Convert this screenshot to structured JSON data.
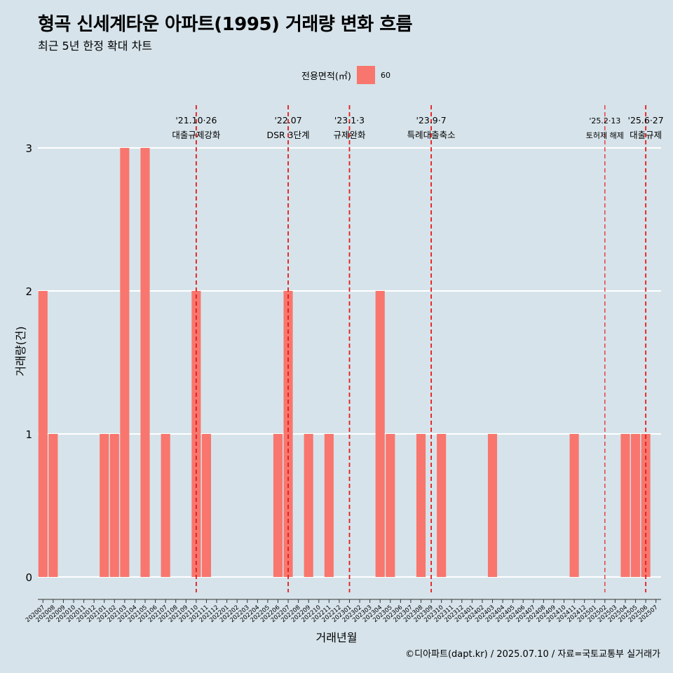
{
  "title": "형곡 신세계타운 아파트(1995) 거래량 변화 흐름",
  "subtitle": "최근 5년 한정 확대 차트",
  "caption": "©디아파트(dapt.kr) / 2025.07.10 / 자료=국토교통부 실거래가",
  "legend": {
    "title": "전용면적(㎡)",
    "label": "60",
    "color": "#f8766d"
  },
  "colors": {
    "background": "#d6e3ea",
    "bar": "#f8766d",
    "event_line": "#e8191a",
    "grid": "#ffffff"
  },
  "chart_data": {
    "type": "bar",
    "title": "형곡 신세계타운 아파트(1995) 거래량 변화 흐름",
    "subtitle": "최근 5년 한정 확대 차트",
    "xlabel": "거래년월",
    "ylabel": "거래량(건)",
    "ylim": [
      0,
      3
    ],
    "yticks": [
      0,
      1,
      2,
      3
    ],
    "grid": "horizontal",
    "legend_position": "top",
    "categories": [
      "202007",
      "202008",
      "202009",
      "202010",
      "202011",
      "202012",
      "202101",
      "202102",
      "202103",
      "202104",
      "202105",
      "202106",
      "202107",
      "202108",
      "202109",
      "202110",
      "202111",
      "202112",
      "202201",
      "202202",
      "202203",
      "202204",
      "202205",
      "202206",
      "202207",
      "202208",
      "202209",
      "202210",
      "202211",
      "202212",
      "202301",
      "202302",
      "202303",
      "202304",
      "202305",
      "202306",
      "202307",
      "202308",
      "202309",
      "202310",
      "202311",
      "202312",
      "202401",
      "202402",
      "202403",
      "202404",
      "202405",
      "202406",
      "202407",
      "202408",
      "202409",
      "202410",
      "202411",
      "202412",
      "202501",
      "202502",
      "202503",
      "202504",
      "202505",
      "202506",
      "202507"
    ],
    "series": [
      {
        "name": "60",
        "values": [
          2,
          1,
          0,
          0,
          0,
          0,
          1,
          1,
          3,
          0,
          3,
          0,
          1,
          0,
          0,
          2,
          1,
          0,
          0,
          0,
          0,
          0,
          0,
          1,
          2,
          0,
          1,
          0,
          1,
          0,
          0,
          0,
          0,
          2,
          1,
          0,
          0,
          1,
          0,
          1,
          0,
          0,
          0,
          0,
          1,
          0,
          0,
          0,
          0,
          0,
          0,
          0,
          1,
          0,
          0,
          0,
          0,
          1,
          1,
          1,
          0
        ]
      }
    ],
    "annotations": [
      {
        "x": "202110",
        "date": "'21.10·26",
        "label": "대출규제강화"
      },
      {
        "x": "202207",
        "date": "'22.07",
        "label": "DSR 3단계"
      },
      {
        "x": "202301",
        "date": "'23.1·3",
        "label": "규제완화"
      },
      {
        "x": "202309",
        "date": "'23.9·7",
        "label": "특례대출축소"
      },
      {
        "x": "202502",
        "date": "'25.2·13",
        "label": "토허제 해제"
      },
      {
        "x": "202506",
        "date": "'25.6·27",
        "label": "대출규제"
      }
    ]
  }
}
